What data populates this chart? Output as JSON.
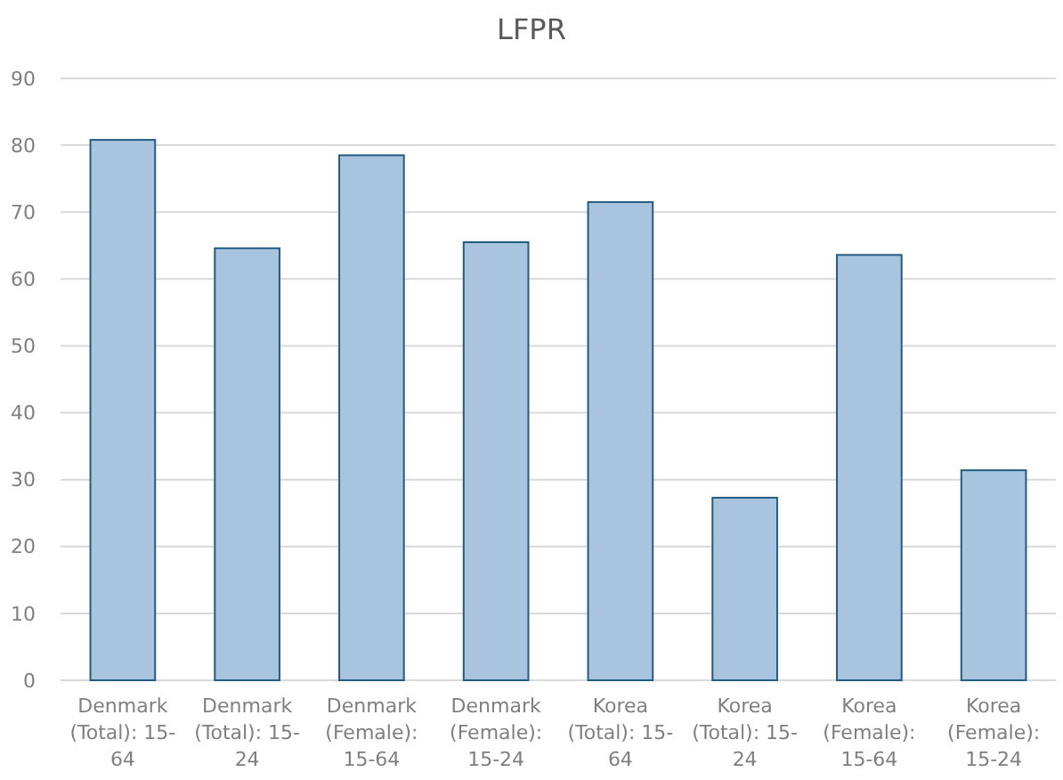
{
  "chart_data": {
    "type": "bar",
    "title": "LFPR",
    "categories": [
      "Denmark (Total): 15-64",
      "Denmark (Total): 15-24",
      "Denmark (Female): 15-64",
      "Denmark (Female): 15-24",
      "Korea (Total): 15-64",
      "Korea (Total): 15-24",
      "Korea (Female): 15-64",
      "Korea (Female): 15-24"
    ],
    "values": [
      80.8,
      64.6,
      78.5,
      65.5,
      71.5,
      27.3,
      63.6,
      31.4
    ],
    "color": "#a9c4de",
    "ylim": [
      0,
      90
    ],
    "yticks": [
      0,
      10,
      20,
      30,
      40,
      50,
      60,
      70,
      80,
      90
    ],
    "grid": "y"
  }
}
